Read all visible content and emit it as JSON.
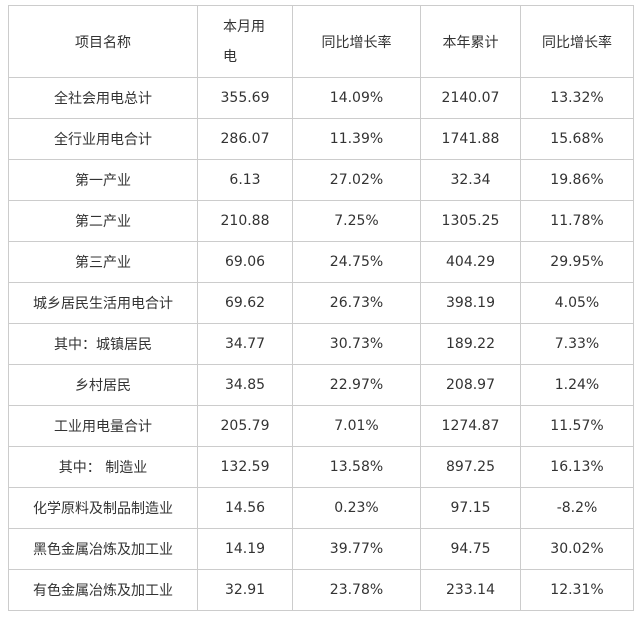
{
  "table": {
    "header": [
      "项目名称",
      "本月用电",
      "同比增长率",
      "本年累计",
      "同比增长率"
    ],
    "rows": [
      [
        "全社会用电总计",
        "355.69",
        "14.09%",
        "2140.07",
        "13.32%"
      ],
      [
        "全行业用电合计",
        "286.07",
        "11.39%",
        "1741.88",
        "15.68%"
      ],
      [
        "第一产业",
        "6.13",
        "27.02%",
        "32.34",
        "19.86%"
      ],
      [
        "第二产业",
        "210.88",
        "7.25%",
        "1305.25",
        "11.78%"
      ],
      [
        "第三产业",
        "69.06",
        "24.75%",
        "404.29",
        "29.95%"
      ],
      [
        "城乡居民生活用电合计",
        "69.62",
        "26.73%",
        "398.19",
        "4.05%"
      ],
      [
        "其中：城镇居民",
        "34.77",
        "30.73%",
        "189.22",
        "7.33%"
      ],
      [
        "乡村居民",
        "34.85",
        "22.97%",
        "208.97",
        "1.24%"
      ],
      [
        "工业用电量合计",
        "205.79",
        "7.01%",
        "1274.87",
        "11.57%"
      ],
      [
        "其中： 制造业",
        "132.59",
        "13.58%",
        "897.25",
        "16.13%"
      ],
      [
        "化学原料及制品制造业",
        "14.56",
        "0.23%",
        "97.15",
        "-8.2%"
      ],
      [
        "黑色金属冶炼及加工业",
        "14.19",
        "39.77%",
        "94.75",
        "30.02%"
      ],
      [
        "有色金属冶炼及加工业",
        "32.91",
        "23.78%",
        "233.14",
        "12.31%"
      ]
    ]
  }
}
